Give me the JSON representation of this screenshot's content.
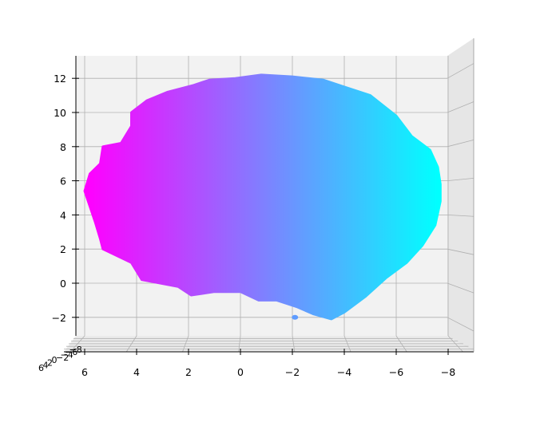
{
  "chart_data": {
    "type": "scatter",
    "projection": "3d",
    "title": "",
    "xlabel": "",
    "ylabel": "",
    "zlabel": "",
    "x_axis": {
      "ticks": [
        6,
        4,
        2,
        0,
        -2,
        -4,
        -6,
        -8
      ],
      "tick_labels": [
        "6",
        "4",
        "2",
        "0",
        "−2",
        "−4",
        "−6",
        "−8"
      ],
      "range": [
        6.2,
        -8.2
      ],
      "inverted": true
    },
    "z_axis": {
      "ticks": [
        -2,
        0,
        2,
        4,
        6,
        8,
        10,
        12
      ],
      "tick_labels": [
        "−2",
        "0",
        "2",
        "4",
        "6",
        "8",
        "10",
        "12"
      ],
      "range": [
        -3,
        13.4
      ]
    },
    "depth_axis": {
      "tick_labels": [
        "6",
        "4",
        "2",
        "0",
        "−2",
        "−4",
        "−6",
        "−8"
      ]
    },
    "colormap": "cool",
    "colormap_stops": [
      "#ff00ff",
      "#00ffff"
    ],
    "color_by": "x",
    "grid": true,
    "legend": "none",
    "point_cloud": {
      "shape": "brain-like blob viewed from the side",
      "x_extent": [
        6.0,
        -7.7
      ],
      "z_extent": [
        -2.1,
        12.3
      ],
      "outline": [
        [
          6.0,
          5.4
        ],
        [
          5.8,
          6.4
        ],
        [
          5.4,
          7.0
        ],
        [
          5.3,
          8.0
        ],
        [
          4.6,
          8.2
        ],
        [
          4.2,
          9.2
        ],
        [
          4.2,
          10.0
        ],
        [
          3.6,
          10.7
        ],
        [
          2.8,
          11.2
        ],
        [
          1.8,
          11.6
        ],
        [
          1.2,
          11.9
        ],
        [
          0.2,
          12.0
        ],
        [
          -0.8,
          12.2
        ],
        [
          -2.0,
          12.1
        ],
        [
          -3.2,
          11.9
        ],
        [
          -4.0,
          11.5
        ],
        [
          -5.0,
          11.0
        ],
        [
          -6.0,
          9.8
        ],
        [
          -6.6,
          8.6
        ],
        [
          -7.3,
          7.8
        ],
        [
          -7.6,
          6.8
        ],
        [
          -7.7,
          5.8
        ],
        [
          -7.7,
          4.8
        ],
        [
          -7.5,
          3.4
        ],
        [
          -7.0,
          2.2
        ],
        [
          -6.4,
          1.2
        ],
        [
          -5.6,
          0.3
        ],
        [
          -4.8,
          -0.8
        ],
        [
          -4.0,
          -1.7
        ],
        [
          -3.5,
          -2.1
        ],
        [
          -2.8,
          -1.8
        ],
        [
          -2.2,
          -1.4
        ],
        [
          -1.4,
          -1.0
        ],
        [
          -0.7,
          -1.0
        ],
        [
          0.0,
          -0.5
        ],
        [
          1.0,
          -0.5
        ],
        [
          1.9,
          -0.7
        ],
        [
          2.4,
          -0.2
        ],
        [
          3.8,
          0.2
        ],
        [
          4.2,
          1.2
        ],
        [
          5.3,
          2.0
        ],
        [
          5.4,
          2.6
        ],
        [
          5.6,
          3.6
        ]
      ]
    }
  }
}
